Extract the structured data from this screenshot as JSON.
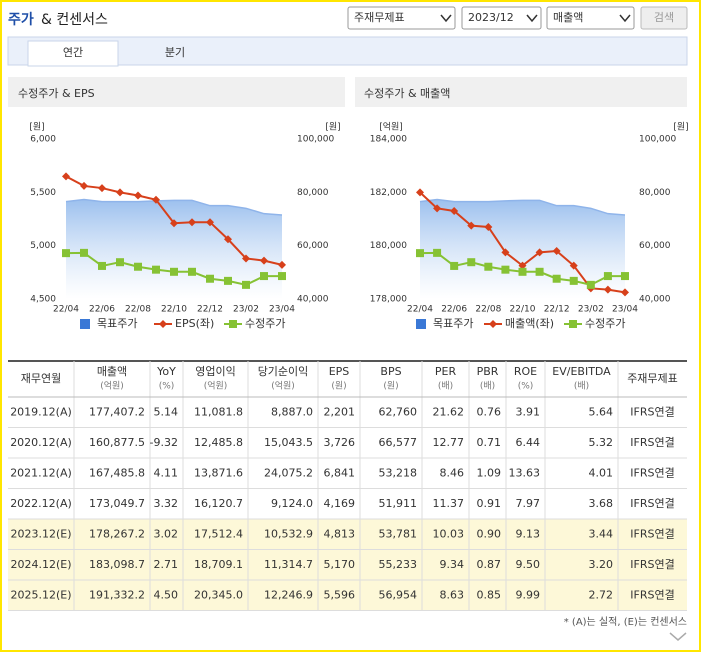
{
  "header": {
    "title": "주가",
    "title_rest": "& 컨센서스",
    "selects": [
      "주재무제표",
      "2023/12",
      "매출액"
    ],
    "button": "검색"
  },
  "tabs": [
    "연간",
    "분기"
  ],
  "chart_data": [
    {
      "type": "line",
      "title": "수정주가 & EPS",
      "y_unit": "[원]",
      "y2_unit": "[원]",
      "categories": [
        "22/04",
        null,
        "22/06",
        null,
        "22/08",
        null,
        "22/10",
        null,
        "22/12",
        null,
        "23/02",
        null,
        "23/04"
      ],
      "ylim": [
        4500,
        6000
      ],
      "yticks": [
        {
          "value": 4500,
          "label": "4,500"
        },
        {
          "value": 5000,
          "label": "5,000"
        },
        {
          "value": 5500,
          "label": "5,500"
        },
        {
          "value": 6000,
          "label": "6,000"
        }
      ],
      "y2lim": [
        40000,
        100000
      ],
      "y2ticks": [
        {
          "value": 40000,
          "label": "40,000"
        },
        {
          "value": 60000,
          "label": "60,000"
        },
        {
          "value": 80000,
          "label": "80,000"
        },
        {
          "value": 100000,
          "label": "100,000"
        }
      ],
      "grid": false,
      "series": [
        {
          "name": "목표주가",
          "color": "#3a78d6",
          "style": "area",
          "axis": "y2",
          "values": [
            76500,
            77300,
            76500,
            76500,
            76500,
            76800,
            77000,
            77000,
            75000,
            75000,
            74000,
            72000,
            71500
          ]
        },
        {
          "name": "EPS(좌)",
          "color": "#d7401b",
          "style": "line",
          "marker": "diamond",
          "values": [
            5650,
            5560,
            5540,
            5500,
            5470,
            5430,
            5210,
            5220,
            5220,
            5060,
            4880,
            4860,
            4820
          ]
        },
        {
          "name": "수정주가",
          "color": "#86c234",
          "style": "line",
          "marker": "square",
          "axis": "y2",
          "values": [
            57200,
            57300,
            52400,
            53800,
            52100,
            51000,
            50200,
            50200,
            47600,
            46800,
            45300,
            48600,
            48600
          ]
        }
      ]
    },
    {
      "type": "line",
      "title": "수정주가 & 매출액",
      "y_unit": "[억원]",
      "y2_unit": "[원]",
      "categories": [
        "22/04",
        null,
        "22/06",
        null,
        "22/08",
        null,
        "22/10",
        null,
        "22/12",
        null,
        "23/02",
        null,
        "23/04"
      ],
      "ylim": [
        178000,
        184000
      ],
      "yticks": [
        {
          "value": 178000,
          "label": "178,000"
        },
        {
          "value": 180000,
          "label": "180,000"
        },
        {
          "value": 182000,
          "label": "182,000"
        },
        {
          "value": 184000,
          "label": "184,000"
        }
      ],
      "y2lim": [
        40000,
        100000
      ],
      "y2ticks": [
        {
          "value": 40000,
          "label": "40,000"
        },
        {
          "value": 60000,
          "label": "60,000"
        },
        {
          "value": 80000,
          "label": "80,000"
        },
        {
          "value": 100000,
          "label": "100,000"
        }
      ],
      "grid": false,
      "series": [
        {
          "name": "목표주가",
          "color": "#3a78d6",
          "style": "area",
          "axis": "y2",
          "values": [
            76500,
            77300,
            76500,
            76500,
            76500,
            76800,
            77000,
            77000,
            75000,
            75000,
            74000,
            72000,
            71500
          ]
        },
        {
          "name": "매출액(좌)",
          "color": "#d7401b",
          "style": "line",
          "marker": "diamond",
          "values": [
            182000,
            181400,
            181300,
            180750,
            180700,
            179750,
            179250,
            179750,
            179800,
            179250,
            178400,
            178350,
            178250
          ]
        },
        {
          "name": "수정주가",
          "color": "#86c234",
          "style": "line",
          "marker": "square",
          "axis": "y2",
          "values": [
            57200,
            57300,
            52400,
            53800,
            52100,
            51000,
            50200,
            50200,
            47600,
            46800,
            45300,
            48600,
            48600
          ]
        }
      ]
    }
  ],
  "table": {
    "columns": [
      {
        "name": "재무연월"
      },
      {
        "name": "매출액",
        "unit": "(억원)"
      },
      {
        "name": "YoY",
        "unit": "(%)"
      },
      {
        "name": "영업이익",
        "unit": "(억원)"
      },
      {
        "name": "당기순이익",
        "unit": "(억원)"
      },
      {
        "name": "EPS",
        "unit": "(원)"
      },
      {
        "name": "BPS",
        "unit": "(원)"
      },
      {
        "name": "PER",
        "unit": "(배)"
      },
      {
        "name": "PBR",
        "unit": "(배)"
      },
      {
        "name": "ROE",
        "unit": "(%)"
      },
      {
        "name": "EV/EBITDA",
        "unit": "(배)"
      },
      {
        "name": "주재무제표"
      }
    ],
    "rows": [
      {
        "highlight": false,
        "cells": [
          "2019.12(A)",
          "177,407.2",
          "5.14",
          "11,081.8",
          "8,887.0",
          "2,201",
          "62,760",
          "21.62",
          "0.76",
          "3.91",
          "5.64",
          "IFRS연결"
        ]
      },
      {
        "highlight": false,
        "cells": [
          "2020.12(A)",
          "160,877.5",
          "-9.32",
          "12,485.8",
          "15,043.5",
          "3,726",
          "66,577",
          "12.77",
          "0.71",
          "6.44",
          "5.32",
          "IFRS연결"
        ]
      },
      {
        "highlight": false,
        "cells": [
          "2021.12(A)",
          "167,485.8",
          "4.11",
          "13,871.6",
          "24,075.2",
          "6,841",
          "53,218",
          "8.46",
          "1.09",
          "13.63",
          "4.01",
          "IFRS연결"
        ]
      },
      {
        "highlight": false,
        "cells": [
          "2022.12(A)",
          "173,049.7",
          "3.32",
          "16,120.7",
          "9,124.0",
          "4,169",
          "51,911",
          "11.37",
          "0.91",
          "7.97",
          "3.68",
          "IFRS연결"
        ]
      },
      {
        "highlight": true,
        "cells": [
          "2023.12(E)",
          "178,267.2",
          "3.02",
          "17,512.4",
          "10,532.9",
          "4,813",
          "53,781",
          "10.03",
          "0.90",
          "9.13",
          "3.44",
          "IFRS연결"
        ]
      },
      {
        "highlight": true,
        "cells": [
          "2024.12(E)",
          "183,098.7",
          "2.71",
          "18,709.1",
          "11,314.7",
          "5,170",
          "55,233",
          "9.34",
          "0.87",
          "9.50",
          "3.20",
          "IFRS연결"
        ]
      },
      {
        "highlight": true,
        "cells": [
          "2025.12(E)",
          "191,332.2",
          "4.50",
          "20,345.0",
          "12,246.9",
          "5,596",
          "56,954",
          "8.63",
          "0.85",
          "9.99",
          "2.72",
          "IFRS연결"
        ]
      }
    ]
  },
  "note": "* (A)는 실적, (E)는 컨센서스"
}
